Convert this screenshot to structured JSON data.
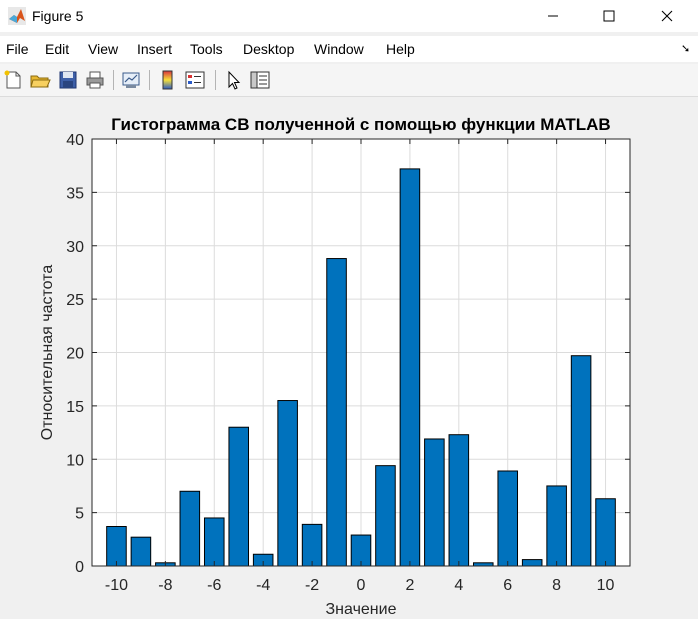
{
  "window": {
    "title": "Figure 5"
  },
  "menu": {
    "items": [
      "File",
      "Edit",
      "View",
      "Insert",
      "Tools",
      "Desktop",
      "Window",
      "Help"
    ]
  },
  "toolbar": {
    "icons": [
      "new-figure-icon",
      "open-file-icon",
      "save-icon",
      "print-icon",
      "link-plot-icon",
      "insert-colorbar-icon",
      "insert-legend-icon",
      "edit-plot-icon",
      "property-inspector-icon"
    ]
  },
  "colors": {
    "bar_fill": "#0072bd",
    "bar_edge": "#000000",
    "grid": "#dcdcdc",
    "axes_bg": "#ffffff"
  },
  "chart_data": {
    "type": "bar",
    "title": "Гистограмма СВ полученной с помощью функции MATLAB",
    "xlabel": "Значение",
    "ylabel": "Относительная частота",
    "x": [
      -10,
      -9,
      -8,
      -7,
      -6,
      -5,
      -4,
      -3,
      -2,
      -1,
      0,
      1,
      2,
      3,
      4,
      5,
      6,
      7,
      8,
      9,
      10
    ],
    "values": [
      3.7,
      2.7,
      0.3,
      7.0,
      4.5,
      13.0,
      1.1,
      15.5,
      3.9,
      28.8,
      2.9,
      9.4,
      37.2,
      11.9,
      12.3,
      0.3,
      8.9,
      0.6,
      7.5,
      19.7,
      6.3
    ],
    "xlim": [
      -11,
      11
    ],
    "ylim": [
      0,
      40
    ],
    "xticks": [
      "-10",
      "-8",
      "-6",
      "-4",
      "-2",
      "0",
      "2",
      "4",
      "6",
      "8",
      "10"
    ],
    "yticks": [
      "0",
      "5",
      "10",
      "15",
      "20",
      "25",
      "30",
      "35",
      "40"
    ],
    "grid": true
  }
}
